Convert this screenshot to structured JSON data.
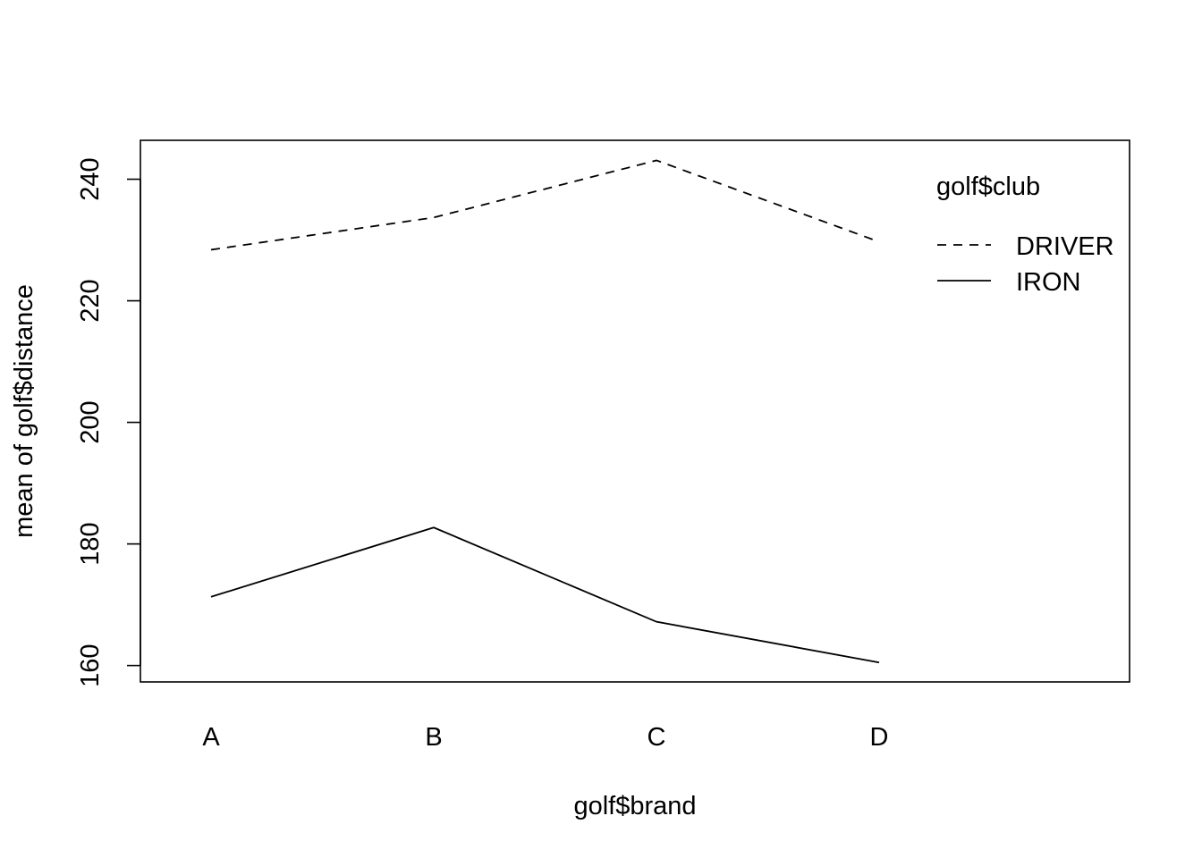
{
  "chart_data": {
    "type": "line",
    "title": "",
    "xlabel": "golf$brand",
    "ylabel": "mean of  golf$distance",
    "categories": [
      "A",
      "B",
      "C",
      "D"
    ],
    "ylim": [
      157.3,
      246.4
    ],
    "yticks": [
      160,
      180,
      200,
      220,
      240
    ],
    "legend": {
      "title": "golf$club",
      "placement": "top-right"
    },
    "series": [
      {
        "name": "DRIVER",
        "style": "dashed",
        "color": "#000000",
        "values": [
          228.4,
          233.7,
          243.1,
          229.7
        ]
      },
      {
        "name": "IRON",
        "style": "solid",
        "color": "#000000",
        "values": [
          171.3,
          182.7,
          167.2,
          160.5
        ]
      }
    ],
    "grid": false
  }
}
